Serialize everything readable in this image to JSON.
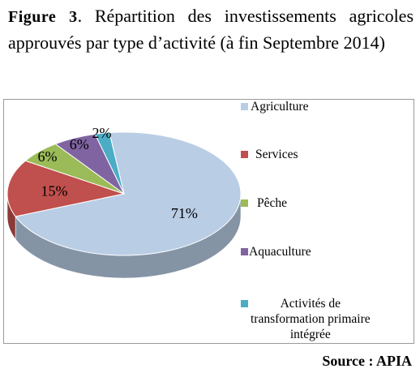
{
  "caption": {
    "figure_label": "Figure 3",
    "text": ". Répartition des investissements agricoles approuvés par type   d’activité (à fin Septembre 2014)"
  },
  "source": "Source : APIA",
  "chart_data": {
    "type": "pie",
    "title": "",
    "legend_position": "right",
    "slices": [
      {
        "label": "Agriculture",
        "value": 71,
        "data_label": "71%",
        "color": "#b9cde5"
      },
      {
        "label": "Services",
        "value": 15,
        "data_label": "15%",
        "color": "#c0504d"
      },
      {
        "label": "Pêche",
        "value": 6,
        "data_label": "6%",
        "color": "#9bbb59"
      },
      {
        "label": "Aquaculture",
        "value": 6,
        "data_label": "6%",
        "color": "#8064a2"
      },
      {
        "label": "Activités de transformation primaire intégrée",
        "label_lines": [
          "Activités de",
          "transformation primaire",
          "intégrée"
        ],
        "value": 2,
        "data_label": "2%",
        "color": "#4bacc6"
      }
    ]
  }
}
